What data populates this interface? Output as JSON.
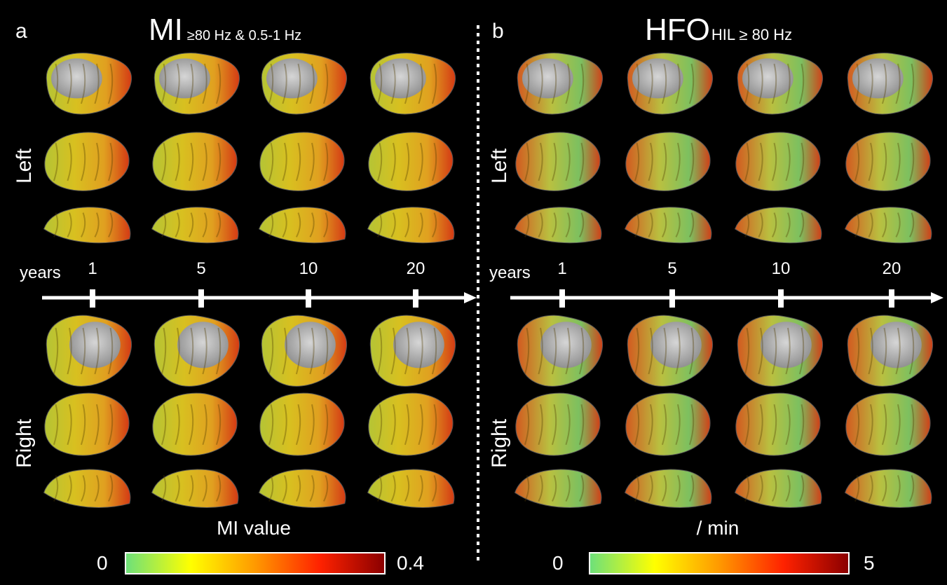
{
  "panels": [
    {
      "letter": "a",
      "title_main": "MI",
      "title_sub": "≥80 Hz & 0.5-1 Hz",
      "axis_label": "years",
      "ticks": [
        "1",
        "5",
        "10",
        "20"
      ],
      "hemi_top": "Left",
      "hemi_bottom": "Right",
      "colorbar_title": "MI value",
      "colorbar_min": "0",
      "colorbar_max": "0.4"
    },
    {
      "letter": "b",
      "title_main": "HFO",
      "title_sub": "HIL ≥ 80 Hz",
      "axis_label": "years",
      "ticks": [
        "1",
        "5",
        "10",
        "20"
      ],
      "hemi_top": "Left",
      "hemi_bottom": "Right",
      "colorbar_title": "/ min",
      "colorbar_min": "0",
      "colorbar_max": "5"
    }
  ],
  "colorscale": [
    "#6ee07a",
    "#ffff00",
    "#ff9900",
    "#ff2200",
    "#8b0000"
  ]
}
